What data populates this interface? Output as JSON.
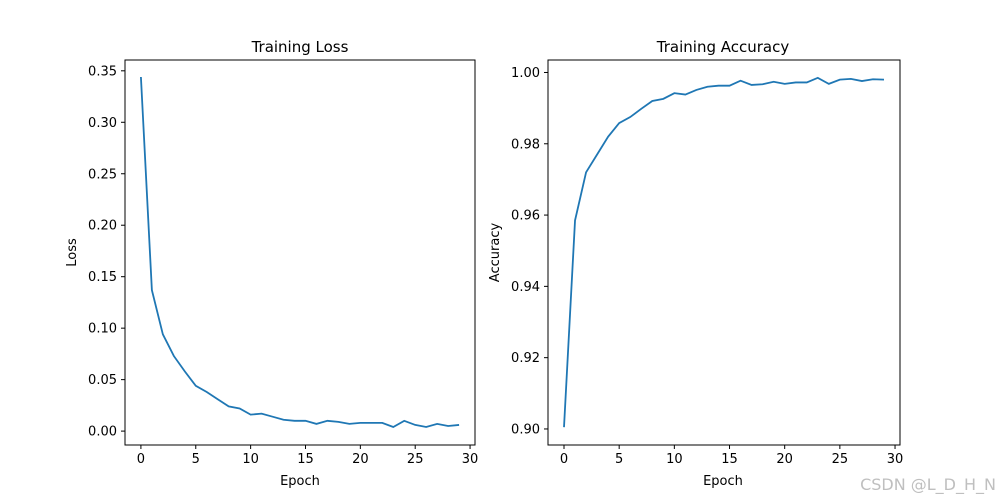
{
  "chart_data": [
    {
      "type": "line",
      "title": "Training Loss",
      "xlabel": "Epoch",
      "ylabel": "Loss",
      "xlim": [
        -1.45,
        30.45
      ],
      "ylim": [
        -0.0135,
        0.3605
      ],
      "xticks": [
        0,
        5,
        10,
        15,
        20,
        25,
        30
      ],
      "yticks": [
        0.0,
        0.05,
        0.1,
        0.15,
        0.2,
        0.25,
        0.3,
        0.35
      ],
      "ytick_labels": [
        "0.00",
        "0.05",
        "0.10",
        "0.15",
        "0.20",
        "0.25",
        "0.30",
        "0.35"
      ],
      "xtick_labels": [
        "0",
        "5",
        "10",
        "15",
        "20",
        "25",
        "30"
      ],
      "grid": false,
      "color": "#1f77b4",
      "series": [
        {
          "x": [
            0,
            1,
            2,
            3,
            4,
            5,
            6,
            7,
            8,
            9,
            10,
            11,
            12,
            13,
            14,
            15,
            16,
            17,
            18,
            19,
            20,
            21,
            22,
            23,
            24,
            25,
            26,
            27,
            28,
            29
          ],
          "values": [
            0.344,
            0.137,
            0.094,
            0.073,
            0.058,
            0.044,
            0.038,
            0.031,
            0.024,
            0.022,
            0.016,
            0.017,
            0.014,
            0.011,
            0.01,
            0.01,
            0.007,
            0.01,
            0.009,
            0.007,
            0.008,
            0.008,
            0.008,
            0.004,
            0.01,
            0.006,
            0.004,
            0.007,
            0.005,
            0.006
          ]
        }
      ]
    },
    {
      "type": "line",
      "title": "Training Accuracy",
      "xlabel": "Epoch",
      "ylabel": "Accuracy",
      "xlim": [
        -1.45,
        30.45
      ],
      "ylim": [
        0.8955,
        1.0035
      ],
      "xticks": [
        0,
        5,
        10,
        15,
        20,
        25,
        30
      ],
      "yticks": [
        0.9,
        0.92,
        0.94,
        0.96,
        0.98,
        1.0
      ],
      "ytick_labels": [
        "0.90",
        "0.92",
        "0.94",
        "0.96",
        "0.98",
        "1.00"
      ],
      "xtick_labels": [
        "0",
        "5",
        "10",
        "15",
        "20",
        "25",
        "30"
      ],
      "grid": false,
      "color": "#1f77b4",
      "series": [
        {
          "x": [
            0,
            1,
            2,
            3,
            4,
            5,
            6,
            7,
            8,
            9,
            10,
            11,
            12,
            13,
            14,
            15,
            16,
            17,
            18,
            19,
            20,
            21,
            22,
            23,
            24,
            25,
            26,
            27,
            28,
            29
          ],
          "values": [
            0.9005,
            0.9585,
            0.972,
            0.977,
            0.982,
            0.9858,
            0.9875,
            0.9898,
            0.992,
            0.9926,
            0.9942,
            0.9938,
            0.9951,
            0.996,
            0.9963,
            0.9963,
            0.9977,
            0.9965,
            0.9967,
            0.9974,
            0.9968,
            0.9972,
            0.9972,
            0.9985,
            0.9968,
            0.998,
            0.9982,
            0.9976,
            0.9981,
            0.998
          ]
        }
      ]
    }
  ],
  "watermark": "CSDN @L_D_H_N"
}
